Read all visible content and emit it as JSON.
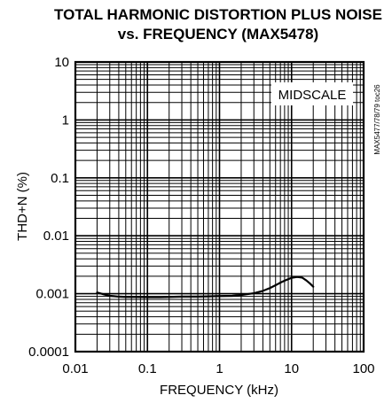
{
  "chart_data": {
    "type": "line",
    "title": "TOTAL HARMONIC DISTORTION PLUS NOISE",
    "subtitle": "vs. FREQUENCY (MAX5478)",
    "xlabel": "FREQUENCY (kHz)",
    "ylabel": "THD+N (%)",
    "x_scale": "log",
    "y_scale": "log",
    "xlim": [
      0.01,
      100
    ],
    "ylim": [
      0.0001,
      10
    ],
    "x_ticks": [
      "0.01",
      "0.1",
      "1",
      "10",
      "100"
    ],
    "y_ticks": [
      "10",
      "1",
      "0.1",
      "0.01",
      "0.001",
      "0.0001"
    ],
    "grid": true,
    "annotation": "MIDSCALE",
    "side_label": "MAX5477/78/79 toc26",
    "series": [
      {
        "x": [
          0.02,
          0.025,
          0.03,
          0.04,
          0.05,
          0.07,
          0.1,
          0.15,
          0.2,
          0.3,
          0.5,
          0.7,
          1,
          1.5,
          2,
          3,
          4,
          5,
          6,
          7,
          8,
          10,
          12,
          14,
          16,
          18,
          20
        ],
        "y": [
          0.00105,
          0.00097,
          0.00092,
          0.00089,
          0.00088,
          0.00088,
          0.00087,
          0.00087,
          0.00088,
          0.00089,
          0.00089,
          0.0009,
          0.00091,
          0.00092,
          0.00095,
          0.00102,
          0.00112,
          0.00125,
          0.0014,
          0.00155,
          0.00168,
          0.00188,
          0.00195,
          0.0019,
          0.0017,
          0.0015,
          0.00132
        ]
      }
    ]
  }
}
